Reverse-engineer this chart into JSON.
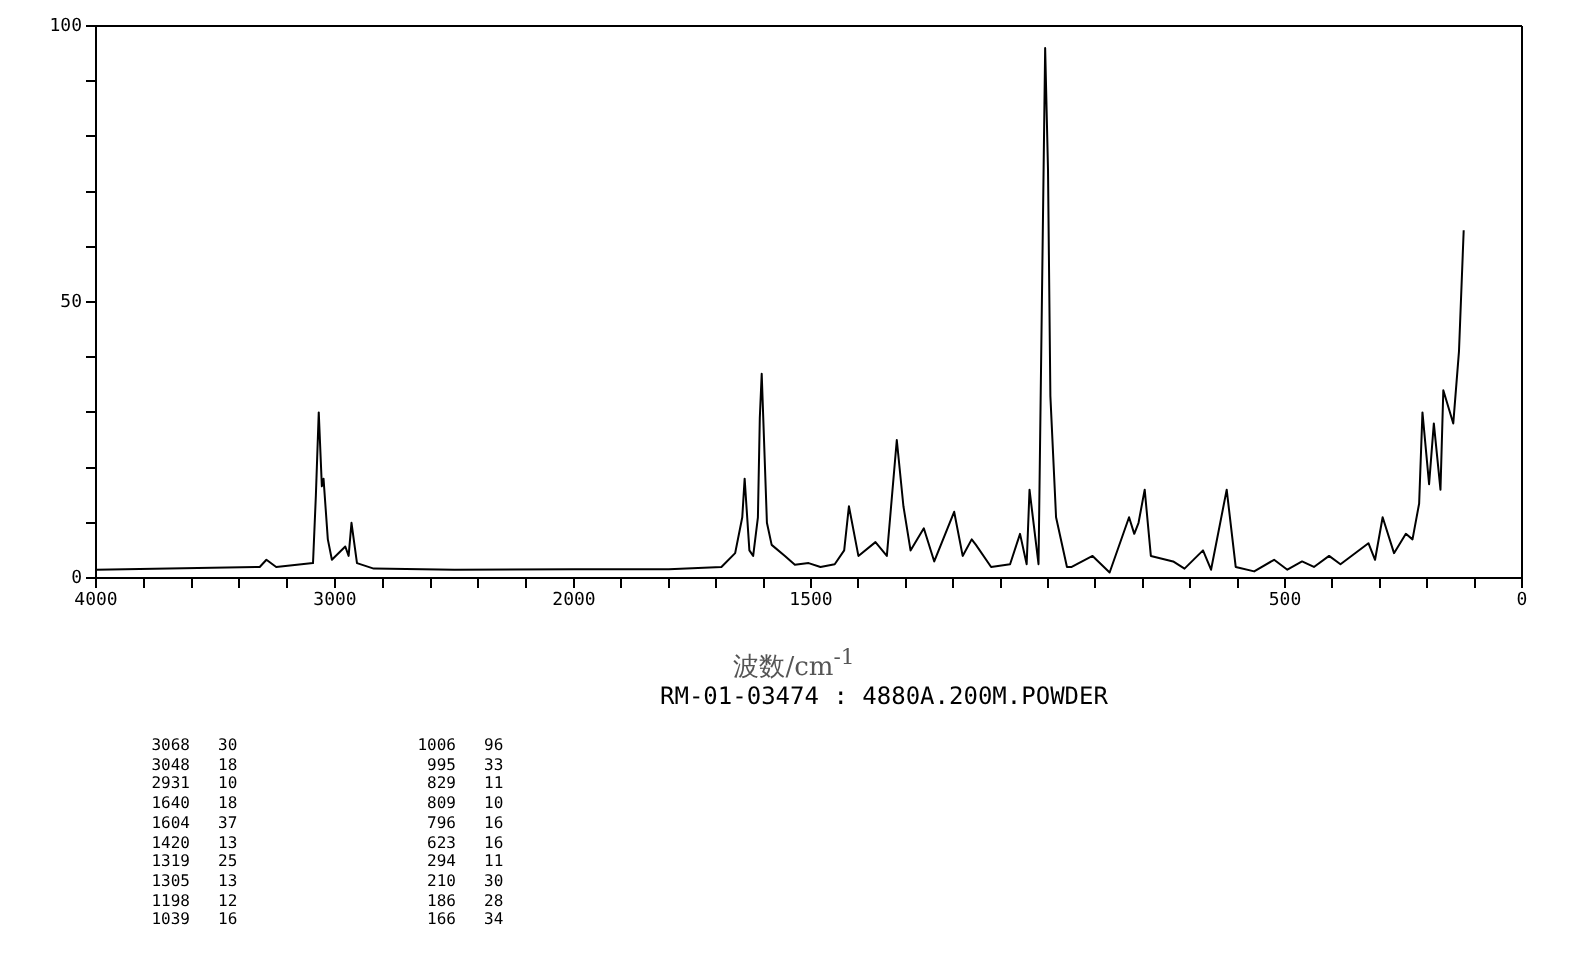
{
  "chart_data": [
    {
      "type": "line",
      "xlim": [
        4000,
        2000
      ],
      "ylim": [
        0,
        100
      ],
      "xticks": [
        4000,
        {
          "value": 3800,
          "label": null
        },
        {
          "value": 3600,
          "label": null
        },
        {
          "value": 3400,
          "label": null
        },
        {
          "value": 3200,
          "label": null
        },
        3000,
        {
          "value": 2800,
          "label": null
        },
        {
          "value": 2600,
          "label": null
        },
        {
          "value": 2400,
          "label": null
        },
        {
          "value": 2200,
          "label": null
        },
        2000
      ],
      "yticks": [
        0,
        {
          "value": 10,
          "label": null
        },
        {
          "value": 20,
          "label": null
        },
        {
          "value": 30,
          "label": null
        },
        {
          "value": 40,
          "label": null
        },
        50,
        {
          "value": 60,
          "label": null
        },
        {
          "value": 70,
          "label": null
        },
        {
          "value": 80,
          "label": null
        },
        {
          "value": 90,
          "label": null
        },
        100
      ],
      "grid": false,
      "legend": false,
      "marker": "none",
      "line_style": "solid",
      "series": [
        {
          "color": "#000000",
          "x": [
            4000,
            3315,
            3287,
            3246,
            3092,
            3080,
            3068,
            3055,
            3048,
            3030,
            3013,
            2957,
            2943,
            2931,
            2908,
            2838,
            2500,
            2000
          ],
          "values": [
            1.5,
            2,
            3.3,
            2,
            2.7,
            15,
            30,
            16.6,
            18,
            7,
            3.3,
            5.7,
            4,
            10,
            2.7,
            1.7,
            1.5,
            1.6
          ]
        }
      ],
      "annotations": [
        "3068 30 1006 96",
        "3048 18 995 33",
        "2931 10 829 11",
        "1640 18 809 10",
        "1604 37 796 16",
        "1420 13 623 16",
        "1319 25 294 11",
        "1305 13 210 30",
        "1198 12 186 28",
        "1039 16 166 34"
      ]
    },
    {
      "type": "line",
      "xlabel": "波数/cm$^{-1}$",
      "subtitle": "RM-01-03474 : 4880A.200M.POWDER",
      "xlim": [
        2000,
        0
      ],
      "ylim": [
        0,
        100
      ],
      "tick_labels": "x",
      "xticks": [
        {
          "value": 1900,
          "label": null
        },
        {
          "value": 1800,
          "label": null
        },
        {
          "value": 1700,
          "label": null
        },
        {
          "value": 1600,
          "label": null
        },
        1500,
        {
          "value": 1400,
          "label": null
        },
        {
          "value": 1300,
          "label": null
        },
        {
          "value": 1200,
          "label": null
        },
        {
          "value": 1100,
          "label": null
        },
        {
          "value": 1000,
          "label": null
        },
        {
          "value": 900,
          "label": null
        },
        {
          "value": 800,
          "label": null
        },
        {
          "value": 700,
          "label": null
        },
        {
          "value": 600,
          "label": null
        },
        500,
        {
          "value": 400,
          "label": null
        },
        {
          "value": 300,
          "label": null
        },
        {
          "value": 200,
          "label": null
        },
        {
          "value": 100,
          "label": null
        },
        0
      ],
      "grid": false,
      "legend": false,
      "marker": "none",
      "line_style": "solid",
      "series": [
        {
          "color": "#000000",
          "x": [
            2000,
            1800,
            1689,
            1660,
            1645,
            1640,
            1630,
            1622,
            1612,
            1608,
            1604,
            1593,
            1583,
            1555,
            1534,
            1505,
            1480,
            1450,
            1430,
            1420,
            1400,
            1364,
            1340,
            1319,
            1305,
            1290,
            1262,
            1240,
            1198,
            1180,
            1161,
            1152,
            1120,
            1080,
            1059,
            1045,
            1039,
            1020,
            1006,
            1000,
            995,
            983,
            960,
            950,
            906,
            870,
            829,
            818,
            809,
            796,
            783,
            736,
            712,
            673,
            656,
            623,
            604,
            565,
            523,
            495,
            464,
            439,
            407,
            383,
            324,
            310,
            294,
            270,
            245,
            231,
            217,
            210,
            196,
            186,
            172,
            166,
            145,
            133,
            123
          ],
          "values": [
            1.6,
            1.6,
            2,
            4.5,
            11,
            18,
            5,
            4,
            11,
            29,
            37,
            10,
            6,
            4,
            2.4,
            2.7,
            2,
            2.5,
            5,
            13,
            4,
            6.5,
            4,
            25,
            13,
            5,
            9,
            3,
            12,
            4,
            7,
            6,
            2,
            2.5,
            8,
            2.5,
            16,
            2.5,
            96,
            74,
            33,
            11,
            2,
            2,
            4,
            1,
            11,
            8,
            10,
            16,
            4,
            3,
            1.7,
            5,
            1.5,
            16,
            2,
            1.2,
            3.3,
            1.5,
            3,
            2,
            4,
            2.5,
            6.3,
            3.3,
            11,
            4.5,
            8,
            7,
            13.5,
            30,
            17,
            28,
            16,
            34,
            28,
            41,
            63
          ]
        }
      ]
    }
  ]
}
